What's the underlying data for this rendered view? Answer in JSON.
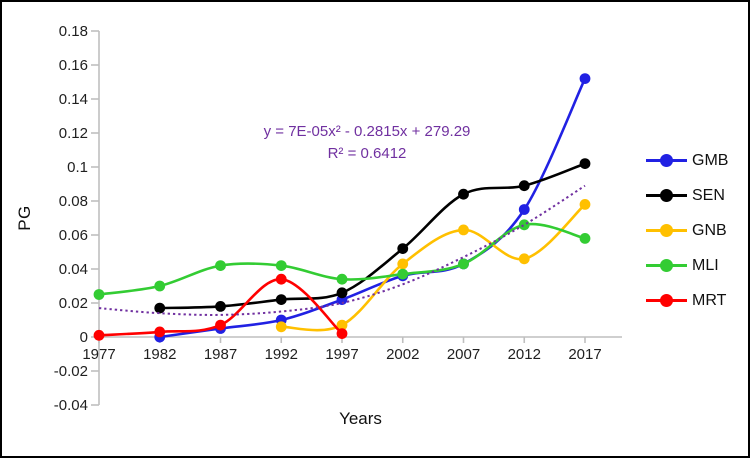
{
  "chart_data": {
    "type": "line",
    "title": "",
    "xlabel": "Years",
    "ylabel": "PG",
    "x_categories": [
      "1977",
      "1982",
      "1987",
      "1992",
      "1997",
      "2002",
      "2007",
      "2012",
      "2017"
    ],
    "y_tick_labels": [
      "0.18",
      "0.16",
      "0.14",
      "0.12",
      "0.1",
      "0.08",
      "0.06",
      "0.04",
      "0.02",
      "0",
      "-0.02",
      "-0.04"
    ],
    "ylim": [
      -0.04,
      0.18
    ],
    "y_tick_step": 0.02,
    "grid": false,
    "legend_position": "right",
    "series": [
      {
        "name": "GMB",
        "color": "#2121E3",
        "values": [
          null,
          0.0,
          0.005,
          0.01,
          0.022,
          0.036,
          0.043,
          0.075,
          0.152
        ]
      },
      {
        "name": "SEN",
        "color": "#000000",
        "values": [
          null,
          0.017,
          0.018,
          0.022,
          0.026,
          0.052,
          0.084,
          0.089,
          0.102
        ]
      },
      {
        "name": "GNB",
        "color": "#FFC000",
        "values": [
          null,
          null,
          null,
          0.006,
          0.007,
          0.043,
          0.063,
          0.046,
          0.078
        ]
      },
      {
        "name": "MLI",
        "color": "#33CC33",
        "values": [
          0.025,
          0.03,
          0.042,
          0.042,
          0.034,
          0.037,
          0.043,
          0.066,
          0.058
        ]
      },
      {
        "name": "MRT",
        "color": "#FF0000",
        "values": [
          0.001,
          0.003,
          0.007,
          0.034,
          0.002,
          null,
          null,
          null,
          null
        ]
      }
    ],
    "trendline": {
      "type": "polynomial",
      "style": "dotted",
      "color": "#7030A0",
      "values": [
        0.017,
        0.014,
        0.013,
        0.015,
        0.02,
        0.031,
        0.047,
        0.066,
        0.089
      ]
    },
    "annotations": {
      "equation": "y = 7E-05x² - 0.2815x + 279.29",
      "r_squared": "R² = 0.6412"
    },
    "axis_color": "#BFBFBF",
    "tick_label_color": "#1F1F1F"
  }
}
